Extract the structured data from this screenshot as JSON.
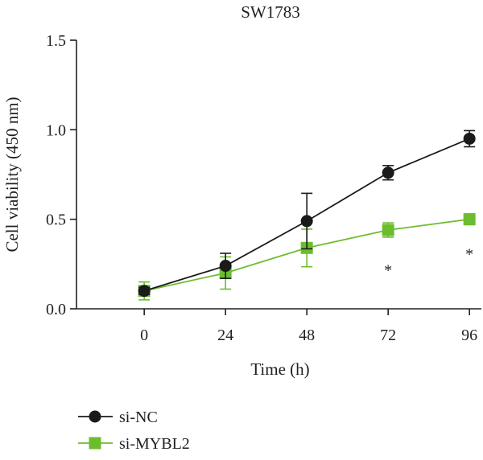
{
  "chart_data": {
    "type": "line",
    "title": "SW1783",
    "xlabel": "Time (h)",
    "ylabel": "Cell viability (450 nm)",
    "x": [
      0,
      24,
      48,
      72,
      96
    ],
    "x_tick_labels": [
      "0",
      "24",
      "48",
      "72",
      "96"
    ],
    "xlim": [
      -20,
      100
    ],
    "ylim": [
      0,
      1.5
    ],
    "y_ticks": [
      0.0,
      0.5,
      1.0,
      1.5
    ],
    "y_tick_labels": [
      "0.0",
      "0.5",
      "1.0",
      "1.5"
    ],
    "grid": false,
    "legend_position": "bottom-left",
    "series": [
      {
        "name": "si-NC",
        "marker": "circle",
        "color": "#1a1a1a",
        "values": [
          0.1,
          0.24,
          0.49,
          0.76,
          0.95
        ],
        "errors": [
          0.02,
          0.07,
          0.155,
          0.04,
          0.045
        ]
      },
      {
        "name": "si-MYBL2",
        "marker": "square",
        "color": "#6cbd2e",
        "values": [
          0.1,
          0.2,
          0.34,
          0.44,
          0.5
        ],
        "errors": [
          0.05,
          0.09,
          0.105,
          0.04,
          0.03
        ]
      }
    ],
    "annotations": [
      {
        "text": "*",
        "x": 72,
        "y": 0.24
      },
      {
        "text": "*",
        "x": 96,
        "y": 0.33
      }
    ]
  }
}
